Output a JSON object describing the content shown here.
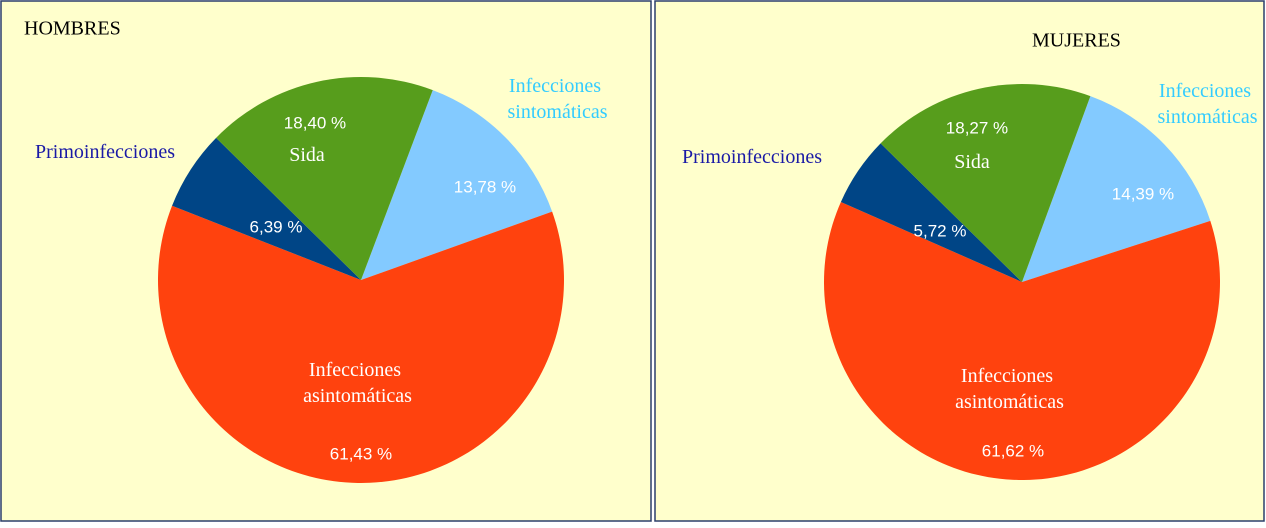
{
  "chart_data": [
    {
      "type": "pie",
      "title": "HOMBRES",
      "categories": [
        "Infecciones sintomáticas",
        "Infecciones asintomáticas",
        "Primoinfecciones",
        "Sida"
      ],
      "values": [
        13.78,
        61.43,
        6.39,
        18.4
      ],
      "value_labels": [
        "13,78 %",
        "61,43 %",
        "6,39 %",
        "18,40 %"
      ],
      "colors": [
        "#83caff",
        "#ff420e",
        "#004586",
        "#579d1c"
      ]
    },
    {
      "type": "pie",
      "title": "MUJERES",
      "categories": [
        "Infecciones sintomáticas",
        "Infecciones asintomáticas",
        "Primoinfecciones",
        "Sida"
      ],
      "values": [
        14.39,
        61.62,
        5.72,
        18.27
      ],
      "value_labels": [
        "14,39 %",
        "61,62 %",
        "5,72 %",
        "18,27 %"
      ],
      "colors": [
        "#83caff",
        "#ff420e",
        "#004586",
        "#579d1c"
      ]
    }
  ]
}
